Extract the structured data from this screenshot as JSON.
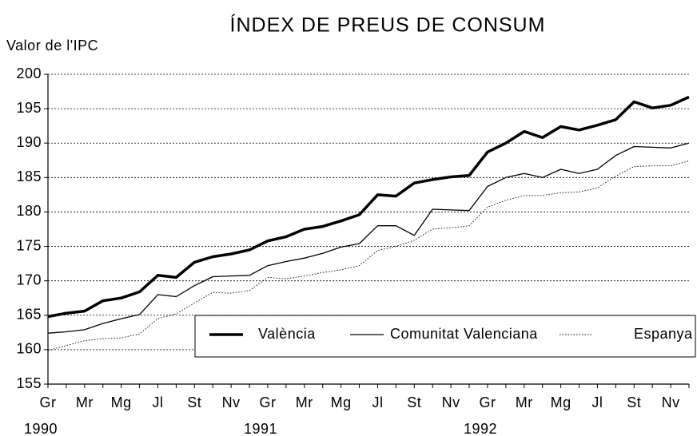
{
  "chart_data": {
    "type": "line",
    "title": "ÍNDEX DE PREUS DE CONSUM",
    "y_label": "Valor de l'IPC",
    "categories": [
      "Gr",
      null,
      "Mr",
      null,
      "Mg",
      null,
      "Jl",
      null,
      "St",
      null,
      "Nv",
      null,
      "Gr",
      null,
      "Mr",
      null,
      "Mg",
      null,
      "Jl",
      null,
      "St",
      null,
      "Nv",
      null,
      "Gr",
      null,
      "Mr",
      null,
      "Mg",
      null,
      "Jl",
      null,
      "St",
      null,
      "Nv",
      null
    ],
    "years": [
      "1990",
      "1991",
      "1992"
    ],
    "series": [
      {
        "name": "València",
        "color": "#000000",
        "line_width": 3.5,
        "dotted": false,
        "values": [
          164.8,
          165.3,
          165.6,
          167.1,
          167.5,
          168.4,
          170.8,
          170.5,
          172.7,
          173.5,
          173.9,
          174.5,
          175.8,
          176.4,
          177.5,
          177.9,
          178.7,
          179.6,
          182.5,
          182.3,
          184.2,
          184.7,
          185.1,
          185.3,
          188.7,
          190.0,
          191.7,
          190.8,
          192.4,
          191.9,
          192.6,
          193.4,
          196.0,
          195.1,
          195.5,
          196.7
        ]
      },
      {
        "name": "Comunitat Valenciana",
        "color": "#000000",
        "line_width": 1.3,
        "dotted": false,
        "values": [
          162.4,
          162.6,
          162.9,
          163.8,
          164.5,
          165.1,
          168.0,
          167.7,
          169.3,
          170.6,
          170.7,
          170.8,
          172.2,
          172.8,
          173.3,
          174.0,
          174.9,
          175.4,
          178.0,
          178.0,
          176.6,
          180.4,
          180.3,
          180.2,
          183.7,
          185.0,
          185.6,
          185.0,
          186.2,
          185.6,
          186.2,
          188.2,
          189.5,
          189.4,
          189.3,
          190.0
        ]
      },
      {
        "name": "Espanya",
        "color": "#000000",
        "line_width": 0.9,
        "dotted": true,
        "values": [
          159.9,
          160.6,
          161.3,
          161.6,
          161.7,
          162.3,
          164.5,
          165.2,
          166.8,
          168.3,
          168.2,
          168.6,
          170.5,
          170.3,
          170.7,
          171.2,
          171.6,
          172.2,
          174.4,
          175.0,
          175.9,
          177.5,
          177.7,
          178.0,
          180.7,
          181.7,
          182.4,
          182.4,
          182.8,
          182.9,
          183.5,
          185.2,
          186.6,
          186.7,
          186.7,
          187.4
        ]
      }
    ],
    "ylim": [
      155,
      200
    ],
    "yticks": [
      155,
      160,
      165,
      170,
      175,
      180,
      185,
      190,
      195,
      200
    ],
    "grid": true,
    "legend": "lower right"
  }
}
